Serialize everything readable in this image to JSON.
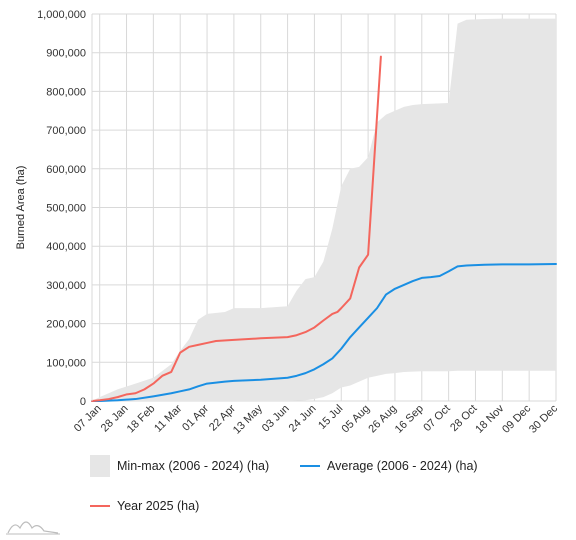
{
  "chart_data": {
    "type": "area",
    "ylabel": "Burned Area (ha)",
    "ylim": [
      0,
      1000000
    ],
    "yticks": [
      0,
      100000,
      200000,
      300000,
      400000,
      500000,
      600000,
      700000,
      800000,
      900000,
      1000000
    ],
    "ytick_labels": [
      "0",
      "100,000",
      "200,000",
      "300,000",
      "400,000",
      "500,000",
      "600,000",
      "700,000",
      "800,000",
      "900,000",
      "1,000,000"
    ],
    "xlim": [
      "01 Jan",
      "30 Dec"
    ],
    "xtick_labels": [
      "07 Jan",
      "28 Jan",
      "18 Feb",
      "11 Mar",
      "01 Apr",
      "22 Apr",
      "13 May",
      "03 Jun",
      "24 Jun",
      "15 Jul",
      "05 Aug",
      "26 Aug",
      "16 Sep",
      "07 Oct",
      "28 Oct",
      "18 Nov",
      "09 Dec",
      "30 Dec"
    ],
    "grid": true,
    "legend_position": "bottom",
    "series": [
      {
        "name": "Min-max (2006 - 2024) (ha)",
        "kind": "range",
        "color": "#e6e6e6",
        "x": [
          "01 Jan",
          "07 Jan",
          "21 Jan",
          "04 Feb",
          "18 Feb",
          "04 Mar",
          "11 Mar",
          "18 Mar",
          "25 Mar",
          "01 Apr",
          "15 Apr",
          "22 Apr",
          "13 May",
          "03 Jun",
          "10 Jun",
          "17 Jun",
          "24 Jun",
          "01 Jul",
          "08 Jul",
          "15 Jul",
          "22 Jul",
          "29 Jul",
          "05 Aug",
          "12 Aug",
          "19 Aug",
          "26 Aug",
          "02 Sep",
          "09 Sep",
          "16 Sep",
          "23 Sep",
          "30 Sep",
          "07 Oct",
          "14 Oct",
          "21 Oct",
          "28 Oct",
          "04 Nov",
          "18 Nov",
          "09 Dec",
          "30 Dec"
        ],
        "min": [
          0,
          0,
          0,
          0,
          0,
          0,
          0,
          0,
          0,
          0,
          0,
          0,
          0,
          0,
          1000,
          2000,
          5000,
          10000,
          20000,
          35000,
          40000,
          50000,
          60000,
          65000,
          70000,
          72000,
          75000,
          76000,
          77000,
          77000,
          77000,
          77000,
          78000,
          78000,
          78000,
          78000,
          78000,
          78000,
          78000
        ],
        "max": [
          0,
          10000,
          30000,
          45000,
          60000,
          95000,
          130000,
          160000,
          210000,
          225000,
          230000,
          240000,
          240000,
          245000,
          285000,
          315000,
          320000,
          360000,
          445000,
          555000,
          600000,
          605000,
          630000,
          720000,
          740000,
          750000,
          760000,
          765000,
          767000,
          768000,
          769000,
          770000,
          975000,
          985000,
          986000,
          987000,
          988000,
          988000,
          988000
        ]
      },
      {
        "name": "Average (2006 - 2024) (ha)",
        "kind": "line",
        "color": "#1a8fe3",
        "x": [
          "01 Jan",
          "07 Jan",
          "21 Jan",
          "04 Feb",
          "18 Feb",
          "04 Mar",
          "11 Mar",
          "18 Mar",
          "25 Mar",
          "01 Apr",
          "15 Apr",
          "22 Apr",
          "13 May",
          "03 Jun",
          "10 Jun",
          "17 Jun",
          "24 Jun",
          "01 Jul",
          "08 Jul",
          "15 Jul",
          "22 Jul",
          "29 Jul",
          "05 Aug",
          "12 Aug",
          "19 Aug",
          "26 Aug",
          "02 Sep",
          "09 Sep",
          "16 Sep",
          "23 Sep",
          "30 Sep",
          "07 Oct",
          "14 Oct",
          "21 Oct",
          "28 Oct",
          "04 Nov",
          "18 Nov",
          "09 Dec",
          "30 Dec"
        ],
        "values": [
          0,
          0,
          2000,
          5000,
          12000,
          20000,
          25000,
          30000,
          38000,
          45000,
          50000,
          52000,
          55000,
          60000,
          65000,
          72000,
          82000,
          95000,
          110000,
          135000,
          165000,
          190000,
          215000,
          240000,
          275000,
          290000,
          300000,
          310000,
          318000,
          320000,
          323000,
          335000,
          348000,
          350000,
          351000,
          352000,
          353000,
          353000,
          354000
        ]
      },
      {
        "name": "Year 2025 (ha)",
        "kind": "line",
        "color": "#f4665d",
        "x": [
          "01 Jan",
          "07 Jan",
          "14 Jan",
          "21 Jan",
          "28 Jan",
          "04 Feb",
          "11 Feb",
          "18 Feb",
          "25 Feb",
          "04 Mar",
          "11 Mar",
          "18 Mar",
          "25 Mar",
          "01 Apr",
          "08 Apr",
          "22 Apr",
          "13 May",
          "03 Jun",
          "10 Jun",
          "17 Jun",
          "24 Jun",
          "01 Jul",
          "08 Jul",
          "12 Jul",
          "15 Jul",
          "22 Jul",
          "29 Jul",
          "05 Aug",
          "15 Aug"
        ],
        "values": [
          0,
          2000,
          5000,
          10000,
          17000,
          20000,
          30000,
          45000,
          65000,
          75000,
          125000,
          140000,
          145000,
          150000,
          155000,
          158000,
          162000,
          165000,
          170000,
          178000,
          190000,
          208000,
          225000,
          230000,
          240000,
          265000,
          345000,
          378000,
          890000
        ]
      }
    ]
  },
  "legend": [
    {
      "label": "Min-max (2006 - 2024) (ha)",
      "swatch": "box",
      "color": "#e6e6e6"
    },
    {
      "label": "Average (2006 - 2024) (ha)",
      "swatch": "line",
      "color": "#1a8fe3"
    },
    {
      "label": "Year 2025 (ha)",
      "swatch": "line",
      "color": "#f4665d"
    }
  ]
}
